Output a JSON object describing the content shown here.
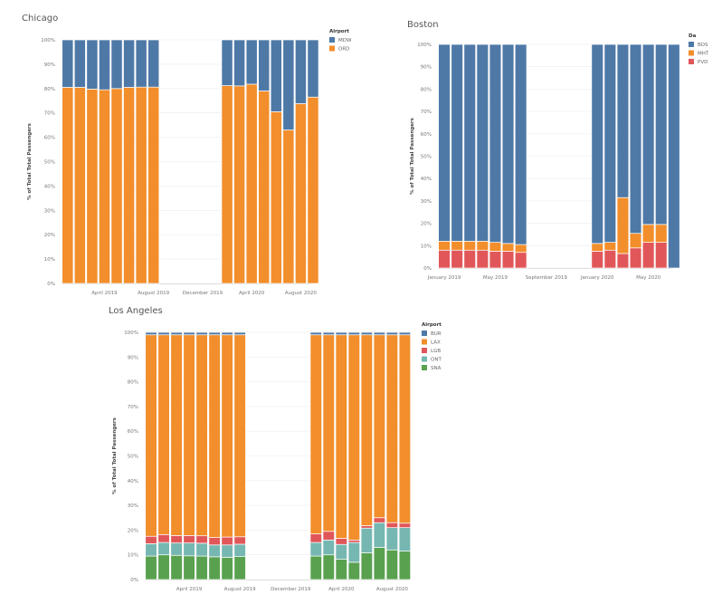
{
  "chart_data": [
    {
      "type": "bar",
      "stacked": true,
      "normalized": true,
      "title": "Chicago",
      "ylabel": "% of Total Total Passengers",
      "ylim": [
        0,
        100
      ],
      "yticks": [
        "0%",
        "10%",
        "20%",
        "30%",
        "40%",
        "50%",
        "60%",
        "70%",
        "80%",
        "90%",
        "100%"
      ],
      "xticks": [
        {
          "label": "April 2019",
          "month": 4
        },
        {
          "label": "August 2019",
          "month": 8
        },
        {
          "label": "December 2019",
          "month": 12
        },
        {
          "label": "April 2020",
          "month": 16
        },
        {
          "label": "August 2020",
          "month": 20
        }
      ],
      "x_months": [
        1,
        2,
        3,
        4,
        5,
        6,
        7,
        8,
        14,
        15,
        16,
        17,
        18,
        19,
        20,
        21
      ],
      "legend_title": "Airport",
      "legend_position": "top-right",
      "grid": true,
      "series": [
        {
          "name": "ORD",
          "color": "#F28E2B",
          "values": [
            80.5,
            80.5,
            79.8,
            79.5,
            80,
            80.5,
            80.6,
            80.6,
            81.2,
            81.1,
            81.8,
            79,
            70.5,
            63,
            73.8,
            76.5
          ]
        },
        {
          "name": "MDW",
          "color": "#4E79A7",
          "values": [
            19.5,
            19.5,
            20.2,
            20.5,
            20,
            19.5,
            19.4,
            19.4,
            18.8,
            18.9,
            18.2,
            21,
            29.5,
            37,
            26.2,
            23.5
          ]
        }
      ]
    },
    {
      "type": "bar",
      "stacked": true,
      "normalized": true,
      "title": "Boston",
      "ylabel": "% of Total Total Passengers",
      "ylim": [
        0,
        100
      ],
      "yticks": [
        "0%",
        "10%",
        "20%",
        "30%",
        "40%",
        "50%",
        "60%",
        "70%",
        "80%",
        "90%",
        "100%"
      ],
      "xticks": [
        {
          "label": "January 2019",
          "month": 1
        },
        {
          "label": "May 2019",
          "month": 5
        },
        {
          "label": "September 2019",
          "month": 9
        },
        {
          "label": "January 2020",
          "month": 13
        },
        {
          "label": "May 2020",
          "month": 17
        }
      ],
      "x_months": [
        1,
        2,
        3,
        4,
        5,
        6,
        7,
        13,
        14,
        15,
        16,
        17,
        18,
        19
      ],
      "legend_title": "Da",
      "legend_position": "top-right",
      "grid": true,
      "series": [
        {
          "name": "PVD",
          "color": "#E15759",
          "values": [
            8,
            8,
            8,
            8,
            7.5,
            7.5,
            7,
            7.5,
            8,
            6.5,
            9,
            11.5,
            11.5,
            0
          ]
        },
        {
          "name": "MHT",
          "color": "#F28E2B",
          "values": [
            4,
            4,
            4,
            4,
            4,
            3.5,
            3.5,
            3.5,
            3.5,
            25,
            6.5,
            8,
            8,
            0
          ]
        },
        {
          "name": "BOS",
          "color": "#4E79A7",
          "values": [
            88,
            88,
            88,
            88,
            88.5,
            89,
            89.5,
            89,
            88.5,
            68.5,
            84.5,
            80.5,
            80.5,
            100
          ]
        }
      ]
    },
    {
      "type": "bar",
      "stacked": true,
      "normalized": true,
      "title": "Los Angeles",
      "ylabel": "% of Total Total Passengers",
      "ylim": [
        0,
        100
      ],
      "yticks": [
        "0%",
        "10%",
        "20%",
        "30%",
        "40%",
        "50%",
        "60%",
        "70%",
        "80%",
        "90%",
        "100%"
      ],
      "xticks": [
        {
          "label": "April 2019",
          "month": 4
        },
        {
          "label": "August 2019",
          "month": 8
        },
        {
          "label": "December 2019",
          "month": 12
        },
        {
          "label": "April 2020",
          "month": 16
        },
        {
          "label": "August 2020",
          "month": 20
        }
      ],
      "x_months": [
        1,
        2,
        3,
        4,
        5,
        6,
        7,
        8,
        14,
        15,
        16,
        17,
        18,
        19,
        20,
        21
      ],
      "legend_title": "Airport",
      "legend_position": "top-right",
      "grid": true,
      "series": [
        {
          "name": "SNA",
          "color": "#59A14F",
          "values": [
            9.5,
            10,
            9.8,
            9.6,
            9.5,
            9.2,
            9,
            9.3,
            9.5,
            10,
            8.2,
            7,
            10.8,
            13,
            12,
            11.5
          ]
        },
        {
          "name": "ONT",
          "color": "#76B7B2",
          "values": [
            5,
            5,
            5,
            5.2,
            5.2,
            4.8,
            5,
            5,
            5.5,
            6,
            6,
            8,
            10,
            10,
            9,
            9.5
          ]
        },
        {
          "name": "LGB",
          "color": "#E15759",
          "values": [
            3,
            3.2,
            3,
            3,
            3,
            3,
            3.2,
            3,
            3.5,
            3.5,
            2.5,
            1,
            1,
            2,
            2,
            1.8
          ]
        },
        {
          "name": "LAX",
          "color": "#F28E2B",
          "values": [
            81.5,
            80.8,
            81.2,
            81.2,
            81.3,
            82,
            81.8,
            81.7,
            80.5,
            79.5,
            82.3,
            83,
            77.2,
            74,
            76,
            76.2
          ]
        },
        {
          "name": "BUR",
          "color": "#4E79A7",
          "values": [
            1,
            1,
            1,
            1,
            1,
            1,
            1,
            1,
            1,
            1,
            1,
            1,
            1,
            1,
            1,
            1
          ]
        }
      ]
    }
  ]
}
